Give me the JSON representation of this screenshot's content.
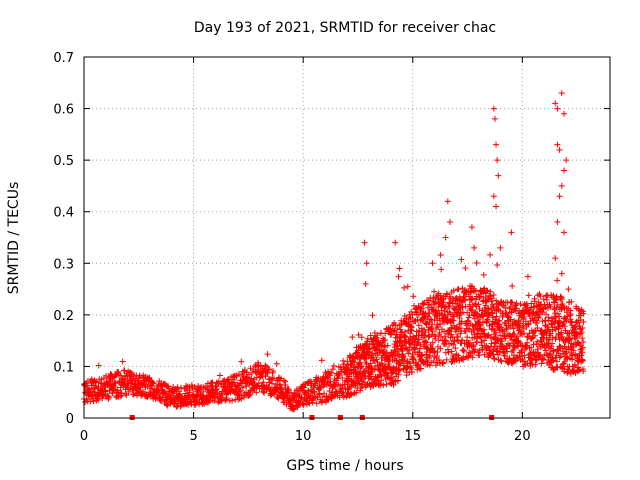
{
  "chart_data": {
    "type": "scatter",
    "title": "Day 193 of 2021, SRMTID for receiver chac",
    "xlabel": "GPS time / hours",
    "ylabel": "SRMTID / TECUs",
    "xlim": [
      0,
      24
    ],
    "ylim": [
      0,
      0.7
    ],
    "xticks": [
      0,
      5,
      10,
      15,
      20
    ],
    "yticks": [
      0,
      0.1,
      0.2,
      0.3,
      0.4,
      0.5,
      0.6,
      0.7
    ],
    "grid": true,
    "marker": "+",
    "color": "#ff0000",
    "gap_markers_x": [
      2.2,
      10.4,
      11.7,
      12.7,
      18.6
    ],
    "envelope": {
      "x": [
        0,
        1,
        2,
        3,
        4,
        5,
        6,
        7,
        8,
        9,
        9.5,
        10,
        11,
        12,
        13,
        14,
        15,
        16,
        17,
        18,
        19,
        20,
        21,
        22,
        22.8
      ],
      "median": [
        0.05,
        0.06,
        0.07,
        0.06,
        0.04,
        0.045,
        0.05,
        0.06,
        0.08,
        0.06,
        0.03,
        0.045,
        0.06,
        0.08,
        0.11,
        0.12,
        0.15,
        0.17,
        0.18,
        0.19,
        0.17,
        0.16,
        0.17,
        0.16,
        0.15
      ],
      "spread": [
        0.02,
        0.025,
        0.025,
        0.02,
        0.02,
        0.02,
        0.02,
        0.025,
        0.03,
        0.025,
        0.015,
        0.02,
        0.03,
        0.04,
        0.05,
        0.06,
        0.06,
        0.07,
        0.07,
        0.07,
        0.06,
        0.06,
        0.07,
        0.08,
        0.06
      ]
    },
    "highlights": [
      {
        "x": 12.8,
        "y": 0.34
      },
      {
        "x": 12.9,
        "y": 0.3
      },
      {
        "x": 12.85,
        "y": 0.26
      },
      {
        "x": 14.2,
        "y": 0.34
      },
      {
        "x": 14.4,
        "y": 0.29
      },
      {
        "x": 15.9,
        "y": 0.3
      },
      {
        "x": 16.5,
        "y": 0.35
      },
      {
        "x": 16.6,
        "y": 0.42
      },
      {
        "x": 16.7,
        "y": 0.38
      },
      {
        "x": 17.7,
        "y": 0.37
      },
      {
        "x": 17.8,
        "y": 0.33
      },
      {
        "x": 18.7,
        "y": 0.6
      },
      {
        "x": 18.75,
        "y": 0.58
      },
      {
        "x": 18.8,
        "y": 0.53
      },
      {
        "x": 18.85,
        "y": 0.5
      },
      {
        "x": 18.9,
        "y": 0.47
      },
      {
        "x": 18.7,
        "y": 0.43
      },
      {
        "x": 18.8,
        "y": 0.41
      },
      {
        "x": 19.0,
        "y": 0.33
      },
      {
        "x": 19.5,
        "y": 0.36
      },
      {
        "x": 21.5,
        "y": 0.61
      },
      {
        "x": 21.6,
        "y": 0.6
      },
      {
        "x": 21.8,
        "y": 0.63
      },
      {
        "x": 21.9,
        "y": 0.59
      },
      {
        "x": 21.6,
        "y": 0.53
      },
      {
        "x": 21.7,
        "y": 0.52
      },
      {
        "x": 22.0,
        "y": 0.5
      },
      {
        "x": 21.9,
        "y": 0.48
      },
      {
        "x": 21.8,
        "y": 0.45
      },
      {
        "x": 21.7,
        "y": 0.43
      },
      {
        "x": 21.6,
        "y": 0.38
      },
      {
        "x": 21.9,
        "y": 0.36
      },
      {
        "x": 21.5,
        "y": 0.31
      },
      {
        "x": 21.8,
        "y": 0.28
      },
      {
        "x": 22.1,
        "y": 0.25
      }
    ]
  }
}
